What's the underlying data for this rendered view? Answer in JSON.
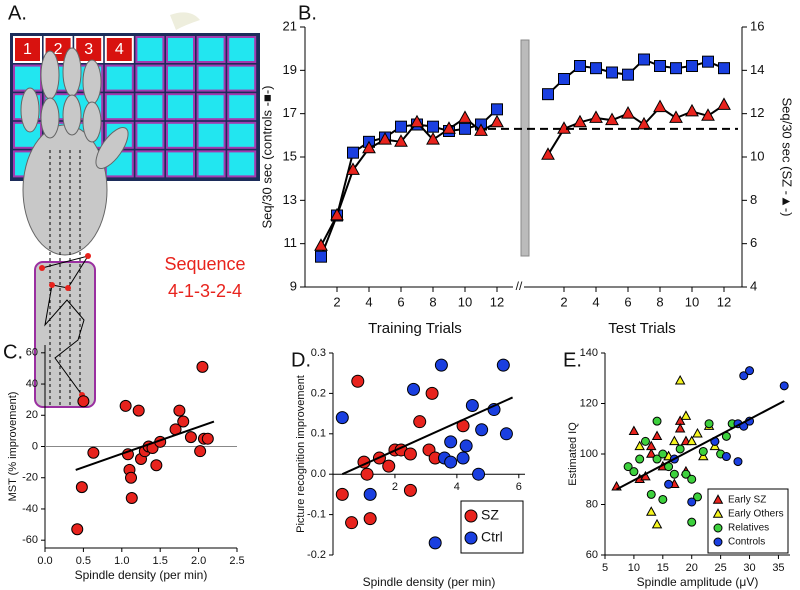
{
  "panel_a": {
    "label": "A.",
    "keys": [
      "1",
      "2",
      "3",
      "4"
    ],
    "caption": [
      "Sequence",
      "4-1-3-2-4"
    ]
  },
  "chart_data": [
    {
      "type": "line",
      "label": "B.",
      "ylabel": "Seq/30 sec (controls -■-)",
      "y2label": "Seq/30 sec (SZ -▲-)",
      "ylim": [
        9,
        21
      ],
      "yticks": [
        9,
        11,
        13,
        15,
        17,
        19,
        21
      ],
      "y2lim": [
        4,
        16
      ],
      "y2ticks": [
        4,
        6,
        8,
        10,
        12,
        14,
        16
      ],
      "xlim": [
        0,
        12.5
      ],
      "xticks": [
        2,
        4,
        6,
        8,
        10,
        12
      ],
      "x": [
        1,
        2,
        3,
        4,
        5,
        6,
        7,
        8,
        9,
        10,
        11,
        12
      ],
      "reference_line": 16.3,
      "phases": [
        {
          "xlabel": "Training Trials",
          "series": [
            {
              "color": "#1a3fe0",
              "marker": "square",
              "values": [
                10.4,
                12.3,
                15.2,
                15.7,
                15.9,
                16.4,
                16.5,
                16.4,
                16.2,
                16.3,
                16.5,
                17.2
              ]
            },
            {
              "color": "#e8231d",
              "marker": "triangle",
              "axis": "y2",
              "values": [
                5.9,
                7.3,
                9.4,
                10.4,
                10.8,
                10.7,
                11.6,
                10.8,
                11.3,
                11.8,
                11.2,
                11.6
              ]
            }
          ]
        },
        {
          "xlabel": "Test Trials",
          "series": [
            {
              "color": "#1a3fe0",
              "marker": "square",
              "values": [
                17.9,
                18.6,
                19.2,
                19.1,
                18.9,
                18.8,
                19.5,
                19.2,
                19.1,
                19.2,
                19.4,
                19.1
              ]
            },
            {
              "color": "#e8231d",
              "marker": "triangle",
              "axis": "y2",
              "values": [
                10.1,
                11.3,
                11.6,
                11.8,
                11.7,
                12.0,
                11.5,
                12.3,
                11.8,
                12.1,
                11.9,
                12.4
              ]
            }
          ]
        }
      ]
    },
    {
      "type": "scatter",
      "label": "C.",
      "xlabel": "Spindle density (per min)",
      "ylabel": "MST (% improvement)",
      "xlim": [
        0,
        2.5
      ],
      "xticks": [
        {
          "value": 0,
          "label": "0.0"
        },
        0.5,
        {
          "value": 1,
          "label": "1.0"
        },
        1.5,
        {
          "value": 2,
          "label": "2.0"
        },
        2.5
      ],
      "ylim": [
        -65,
        65
      ],
      "yticks": [
        -60,
        -40,
        -20,
        0,
        20,
        40,
        60
      ],
      "reference_line": 0,
      "series": [
        {
          "color": "#e8231d",
          "marker": "circle",
          "x": [
            0.42,
            0.48,
            0.5,
            0.63,
            1.05,
            1.08,
            1.1,
            1.12,
            1.13,
            1.22,
            1.25,
            1.3,
            1.35,
            1.4,
            1.45,
            1.5,
            1.7,
            1.75,
            1.8,
            1.9,
            2.02,
            2.05,
            2.07,
            2.12
          ],
          "values": [
            -53,
            -26,
            29,
            -4,
            26,
            -5,
            -15,
            -20,
            -33,
            23,
            -8,
            -3,
            0,
            -1,
            -12,
            3,
            11,
            23,
            16,
            6,
            -3,
            51,
            5,
            5
          ]
        }
      ],
      "trend": {
        "x": [
          0.4,
          2.2
        ],
        "values": [
          -15,
          16
        ]
      }
    },
    {
      "type": "scatter",
      "label": "D.",
      "xlabel": "Spindle density (per min)",
      "ylabel": "Picture recognition improvement",
      "xlim": [
        0,
        6.2
      ],
      "xticks": [
        2,
        4,
        6
      ],
      "xaxis_position": "zero",
      "ylim": [
        -0.2,
        0.3
      ],
      "yticks": [
        -0.2,
        -0.1,
        {
          "value": 0,
          "label": "0.0"
        },
        0.1,
        0.2,
        0.3
      ],
      "legend": "lower right",
      "series": [
        {
          "name": "SZ",
          "color": "#e8231d",
          "marker": "circle",
          "x": [
            0.3,
            0.6,
            0.8,
            1.0,
            1.1,
            1.2,
            1.5,
            1.8,
            2.0,
            2.2,
            2.5,
            2.5,
            2.8,
            3.1,
            3.2,
            3.3,
            4.2
          ],
          "values": [
            -0.05,
            -0.12,
            0.23,
            0.03,
            0.0,
            -0.11,
            0.04,
            0.02,
            0.06,
            0.06,
            0.05,
            -0.04,
            0.13,
            0.06,
            0.2,
            0.04,
            0.12
          ]
        },
        {
          "name": "Ctrl",
          "color": "#1a3fe0",
          "marker": "circle",
          "x": [
            0.3,
            1.2,
            2.6,
            3.3,
            3.5,
            3.6,
            3.8,
            3.8,
            4.2,
            4.3,
            4.5,
            4.8,
            5.2,
            5.5,
            5.6,
            4.7
          ],
          "values": [
            0.14,
            -0.05,
            0.21,
            -0.17,
            0.27,
            0.04,
            0.08,
            0.03,
            0.04,
            0.07,
            0.17,
            0.11,
            0.16,
            0.27,
            0.1,
            0.0
          ]
        }
      ],
      "trend": {
        "x": [
          0.3,
          5.8
        ],
        "values": [
          0.0,
          0.19
        ]
      }
    },
    {
      "type": "scatter",
      "label": "E.",
      "xlabel": "Spindle amplitude (μV)",
      "ylabel": "Estimated IQ",
      "xlim": [
        5,
        37
      ],
      "xticks": [
        5,
        10,
        15,
        20,
        25,
        30,
        35
      ],
      "ylim": [
        60,
        140
      ],
      "yticks": [
        60,
        80,
        100,
        120,
        140
      ],
      "legend": "lower right",
      "series": [
        {
          "name": "Early SZ",
          "color": "#e8231d",
          "marker": "triangle",
          "x": [
            7,
            10,
            11,
            12,
            13,
            13,
            14,
            15,
            16,
            17,
            18,
            18,
            19,
            19
          ],
          "values": [
            87,
            109,
            90,
            91,
            100,
            103,
            107,
            95,
            99,
            88,
            113,
            110,
            105,
            93
          ]
        },
        {
          "name": "Early Others",
          "color": "#f5f51e",
          "marker": "triangle",
          "x": [
            11,
            13,
            14,
            16,
            17,
            18,
            19,
            20,
            21,
            22,
            23,
            24
          ],
          "values": [
            103,
            77,
            72,
            99,
            105,
            129,
            115,
            105,
            108,
            99,
            111,
            103
          ]
        },
        {
          "name": "Relatives",
          "color": "#3dd13d",
          "marker": "circle",
          "x": [
            9,
            10,
            11,
            12,
            13,
            14,
            14,
            15,
            15,
            16,
            17,
            18,
            19,
            20,
            20,
            21,
            22,
            23,
            24,
            25,
            26,
            27
          ],
          "values": [
            95,
            93,
            98,
            105,
            84,
            98,
            113,
            82,
            100,
            95,
            92,
            102,
            92,
            90,
            73,
            83,
            101,
            112,
            105,
            100,
            107,
            112
          ]
        },
        {
          "name": "Controls",
          "color": "#1a3fe0",
          "marker": "circle",
          "x": [
            16,
            17,
            20,
            24,
            26,
            28,
            28,
            29,
            29,
            30,
            30,
            36
          ],
          "values": [
            88,
            98,
            81,
            105,
            99,
            97,
            112,
            111,
            131,
            133,
            113,
            127
          ]
        }
      ],
      "trend": {
        "x": [
          7,
          36
        ],
        "values": [
          86,
          121
        ]
      }
    }
  ]
}
